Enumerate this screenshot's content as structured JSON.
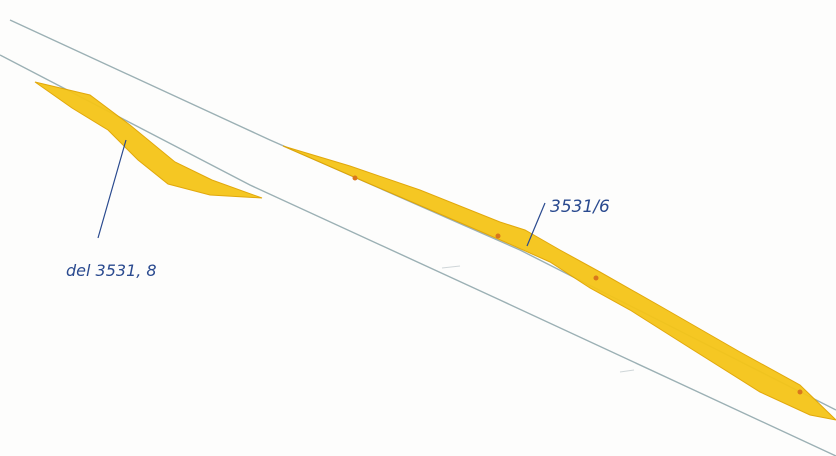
{
  "map": {
    "parcel_labels": {
      "left": "del 3531, 8",
      "right": "3531/6"
    },
    "colors": {
      "paper": "#fdfdfc",
      "highlight": "#f5c518",
      "highlight_edge": "#e0a400",
      "highlight_spots": "#d9771c",
      "boundary_line": "#9bb0b4",
      "ink": "#2a4a8f"
    }
  }
}
